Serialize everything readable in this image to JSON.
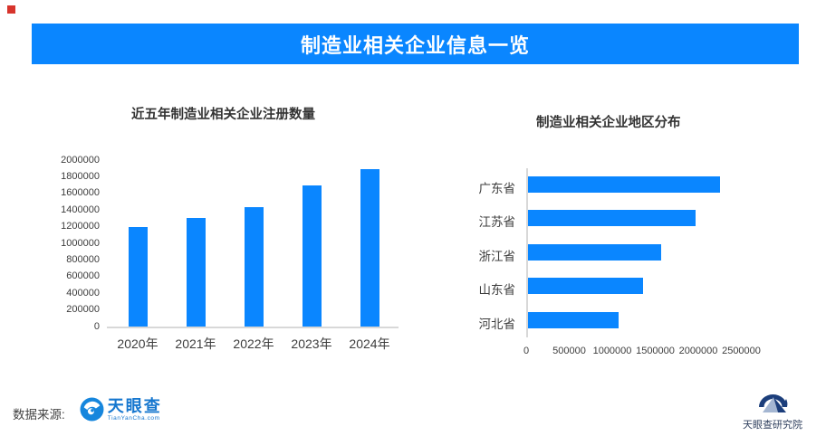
{
  "banner": {
    "title": "制造业相关企业信息一览",
    "bg_color": "#0a86ff",
    "text_color": "#ffffff"
  },
  "accent_color": "#0a86ff",
  "red_marker_color": "#d7342c",
  "chart_data": [
    {
      "type": "bar",
      "title": "近五年制造业相关企业注册数量",
      "categories": [
        "2020年",
        "2021年",
        "2022年",
        "2023年",
        "2024年"
      ],
      "values": [
        1200000,
        1300000,
        1440000,
        1700000,
        1890000
      ],
      "ylim": [
        0,
        2000000
      ],
      "yticks": [
        0,
        200000,
        400000,
        600000,
        800000,
        1000000,
        1200000,
        1400000,
        1600000,
        1800000,
        2000000
      ],
      "bar_color": "#0a86ff",
      "grid": false,
      "legend": "none"
    },
    {
      "type": "bar",
      "orientation": "horizontal",
      "title": "制造业相关企业地区分布",
      "categories": [
        "广东省",
        "江苏省",
        "浙江省",
        "山东省",
        "河北省"
      ],
      "values": [
        2240000,
        1950000,
        1550000,
        1340000,
        1060000
      ],
      "xlim": [
        0,
        2500000
      ],
      "xticks": [
        0,
        500000,
        1000000,
        1500000,
        2000000,
        2500000
      ],
      "bar_color": "#0a86ff",
      "grid": false,
      "legend": "none"
    }
  ],
  "footer": {
    "source_label": "数据来源:",
    "tianyancha": {
      "name": "天眼查",
      "domain": "TianYanCha.com",
      "brand_color": "#1677cf"
    },
    "research": {
      "name": "天眼查研究院",
      "text_color": "#31415f",
      "logo_color": "#1c3e7b"
    }
  }
}
